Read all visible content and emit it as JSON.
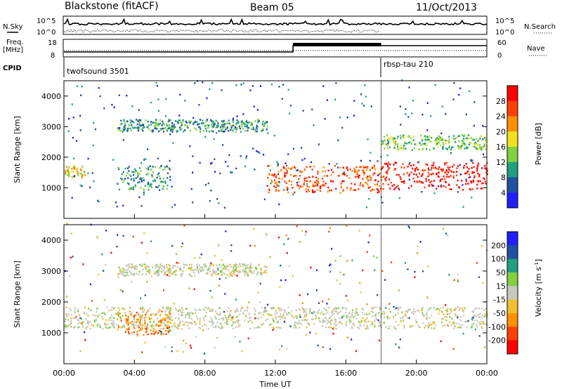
{
  "header": {
    "station": "Blackstone (fitACF)",
    "beam": "Beam 05",
    "date": "11/Oct/2013"
  },
  "top_panels": {
    "nsky_label": "N.Sky",
    "nsearch_label": "N.Search",
    "noise_ticks": [
      "10^5",
      "10^0"
    ],
    "freq_label": [
      "Freq.",
      "[MHz]"
    ],
    "freq_ticks": [
      "18",
      "8"
    ],
    "nave_label": "Nave",
    "nave_ticks": [
      "60",
      "0"
    ],
    "cpid_label": "CPID",
    "cpid_segments": [
      {
        "name": "twofsound 3501",
        "start_hour": 0,
        "end_hour": 18
      },
      {
        "name": "rbsp-tau 210",
        "start_hour": 18,
        "end_hour": 24
      }
    ]
  },
  "chart_data": [
    {
      "type": "heatmap",
      "title": "",
      "xlabel": "Time UT",
      "ylabel": "Slant Range [km]",
      "x_range_hours": [
        0,
        24
      ],
      "ylim": [
        0,
        4500
      ],
      "colorbar_label": "Power [dB]",
      "colorbar_ticks": [
        4,
        8,
        12,
        16,
        20,
        24,
        28
      ],
      "colorbar_range": [
        0,
        32
      ],
      "colors": [
        "#2020ff",
        "#2050a0",
        "#20a080",
        "#80d040",
        "#f0e020",
        "#ff9000",
        "#ff4000",
        "#ff0000"
      ],
      "features": [
        {
          "name": "E region echoes",
          "start_hour": 0.0,
          "end_hour": 1.2,
          "range_km": [
            1300,
            1700
          ],
          "level_db": 16
        },
        {
          "name": "Evening band",
          "start_hour": 3.0,
          "end_hour": 6.0,
          "range_km": [
            900,
            1700
          ],
          "level_db": 8
        },
        {
          "name": "Half-hop 3000 km",
          "start_hour": 3.0,
          "end_hour": 11.5,
          "range_km": [
            2800,
            3200
          ],
          "level_db": 8
        },
        {
          "name": "Afternoon sea scatter",
          "start_hour": 11.5,
          "end_hour": 18.0,
          "range_km": [
            800,
            1700
          ],
          "level_db": 24
        },
        {
          "name": "Evening sea scatter",
          "start_hour": 18.0,
          "end_hour": 24.0,
          "range_km": [
            900,
            1800
          ],
          "level_db": 28
        },
        {
          "name": "Evening upper band",
          "start_hour": 18.0,
          "end_hour": 24.0,
          "range_km": [
            2200,
            2700
          ],
          "level_db": 12
        }
      ]
    },
    {
      "type": "heatmap",
      "title": "",
      "xlabel": "Time UT",
      "ylabel": "Slant Range [km]",
      "x_range_hours": [
        0,
        24
      ],
      "ylim": [
        0,
        4500
      ],
      "colorbar_label": "Velocity [m s",
      "colorbar_label_sup": "-1",
      "colorbar_ticks": [
        -200,
        -100,
        -50,
        -15,
        15,
        50,
        100,
        200
      ],
      "colors": [
        "#ff0000",
        "#ff4000",
        "#ff9000",
        "#f0c030",
        "#c8c8c0",
        "#80d040",
        "#20a080",
        "#2050a0",
        "#2020ff"
      ],
      "features": [
        {
          "name": "Ground scatter",
          "start_hour": 0.0,
          "end_hour": 24.0,
          "range_km": [
            1100,
            1800
          ],
          "velocity": 0
        },
        {
          "name": "Evening band",
          "start_hour": 3.0,
          "end_hour": 6.0,
          "range_km": [
            900,
            1700
          ],
          "velocity": -50
        },
        {
          "name": "Half-hop 3000 km",
          "start_hour": 3.0,
          "end_hour": 11.5,
          "range_km": [
            2800,
            3200
          ],
          "velocity": 0
        }
      ]
    }
  ],
  "x_ticks": [
    "00:00",
    "04:00",
    "08:00",
    "12:00",
    "16:00",
    "20:00",
    "00:00"
  ],
  "y_ticks": [
    "1000",
    "2000",
    "3000",
    "4000"
  ],
  "xlabel": "Time UT"
}
